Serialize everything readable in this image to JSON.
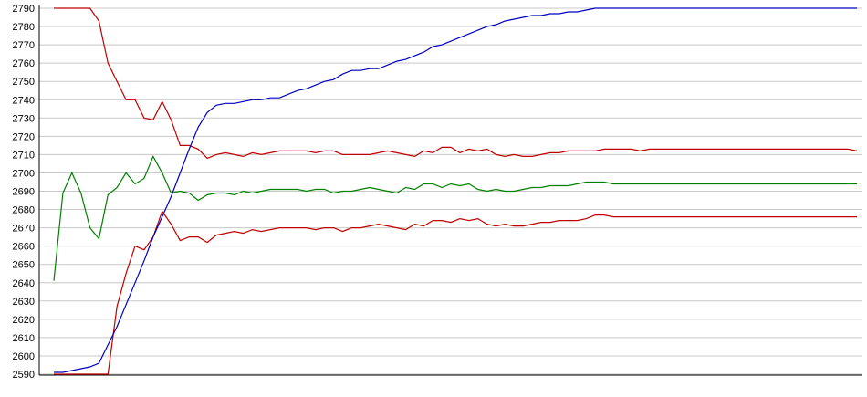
{
  "chart_data": {
    "type": "line",
    "title": "",
    "xlabel": "",
    "ylabel": "",
    "ylim": [
      2590,
      2790
    ],
    "yticks": [
      2590,
      2600,
      2610,
      2620,
      2630,
      2640,
      2650,
      2660,
      2670,
      2680,
      2690,
      2700,
      2710,
      2720,
      2730,
      2740,
      2750,
      2760,
      2770,
      2780,
      2790
    ],
    "grid": true,
    "legend": "none",
    "colors": {
      "upper": "#c00000",
      "middle": "#008000",
      "lower": "#c00000",
      "rising": "#0000c0",
      "grid": "#c8c8c8",
      "axis": "#000000"
    },
    "x": [
      1,
      2,
      3,
      4,
      5,
      6,
      7,
      8,
      9,
      10,
      11,
      12,
      13,
      14,
      15,
      16,
      17,
      18,
      19,
      20,
      21,
      22,
      23,
      24,
      25,
      26,
      27,
      28,
      29,
      30,
      31,
      32,
      33,
      34,
      35,
      36,
      37,
      38,
      39,
      40,
      41,
      42,
      43,
      44,
      45,
      46,
      47,
      48,
      49,
      50,
      51,
      52,
      53,
      54,
      55,
      56,
      57,
      58,
      59,
      60,
      61,
      62,
      63,
      64,
      65,
      66,
      67,
      68,
      69,
      70,
      71,
      72,
      73,
      74,
      75,
      76,
      77,
      78,
      79,
      80,
      81,
      82,
      83,
      84,
      85,
      86,
      87,
      88,
      89,
      90
    ],
    "series": [
      {
        "key": "upper",
        "values": [
          2790,
          2790,
          2790,
          2790,
          2790,
          2783,
          2760,
          2750,
          2740,
          2740,
          2730,
          2729,
          2739,
          2729,
          2715,
          2715,
          2713,
          2708,
          2710,
          2711,
          2710,
          2709,
          2711,
          2710,
          2711,
          2712,
          2712,
          2712,
          2712,
          2711,
          2712,
          2712,
          2710,
          2710,
          2710,
          2710,
          2711,
          2712,
          2711,
          2710,
          2709,
          2712,
          2711,
          2714,
          2714,
          2711,
          2713,
          2712,
          2713,
          2710,
          2709,
          2710,
          2709,
          2709,
          2710,
          2711,
          2711,
          2712,
          2712,
          2712,
          2712,
          2713,
          2713,
          2713,
          2713,
          2712,
          2713,
          2713,
          2713,
          2713,
          2713,
          2713,
          2713,
          2713,
          2713,
          2713,
          2713,
          2713,
          2713,
          2713,
          2713,
          2713,
          2713,
          2713,
          2713,
          2713,
          2713,
          2713,
          2713,
          2712
        ]
      },
      {
        "key": "middle",
        "values": [
          2641,
          2689,
          2700,
          2689,
          2670,
          2664,
          2688,
          2692,
          2700,
          2694,
          2697,
          2709,
          2700,
          2689,
          2690,
          2689,
          2685,
          2688,
          2689,
          2689,
          2688,
          2690,
          2689,
          2690,
          2691,
          2691,
          2691,
          2691,
          2690,
          2691,
          2691,
          2689,
          2690,
          2690,
          2691,
          2692,
          2691,
          2690,
          2689,
          2692,
          2691,
          2694,
          2694,
          2692,
          2694,
          2693,
          2694,
          2691,
          2690,
          2691,
          2690,
          2690,
          2691,
          2692,
          2692,
          2693,
          2693,
          2693,
          2694,
          2695,
          2695,
          2695,
          2694,
          2694,
          2694,
          2694,
          2694,
          2694,
          2694,
          2694,
          2694,
          2694,
          2694,
          2694,
          2694,
          2694,
          2694,
          2694,
          2694,
          2694,
          2694,
          2694,
          2694,
          2694,
          2694,
          2694,
          2694,
          2694,
          2694,
          2694
        ]
      },
      {
        "key": "lower",
        "values": [
          2590,
          2590,
          2590,
          2590,
          2590,
          2590,
          2590,
          2627,
          2645,
          2660,
          2658,
          2665,
          2679,
          2672,
          2663,
          2665,
          2665,
          2662,
          2666,
          2667,
          2668,
          2667,
          2669,
          2668,
          2669,
          2670,
          2670,
          2670,
          2670,
          2669,
          2670,
          2670,
          2668,
          2670,
          2670,
          2671,
          2672,
          2671,
          2670,
          2669,
          2672,
          2671,
          2674,
          2674,
          2673,
          2675,
          2674,
          2675,
          2672,
          2671,
          2672,
          2671,
          2671,
          2672,
          2673,
          2673,
          2674,
          2674,
          2674,
          2675,
          2677,
          2677,
          2676,
          2676,
          2676,
          2676,
          2676,
          2676,
          2676,
          2676,
          2676,
          2676,
          2676,
          2676,
          2676,
          2676,
          2676,
          2676,
          2676,
          2676,
          2676,
          2676,
          2676,
          2676,
          2676,
          2676,
          2676,
          2676,
          2676,
          2676
        ]
      },
      {
        "key": "rising",
        "values": [
          2591,
          2591,
          2592,
          2593,
          2594,
          2596,
          2606,
          2616,
          2628,
          2640,
          2652,
          2665,
          2676,
          2687,
          2700,
          2713,
          2725,
          2733,
          2737,
          2738,
          2738,
          2739,
          2740,
          2740,
          2741,
          2741,
          2743,
          2745,
          2746,
          2748,
          2750,
          2751,
          2754,
          2756,
          2756,
          2757,
          2757,
          2759,
          2761,
          2762,
          2764,
          2766,
          2769,
          2770,
          2772,
          2774,
          2776,
          2778,
          2780,
          2781,
          2783,
          2784,
          2785,
          2786,
          2786,
          2787,
          2787,
          2788,
          2788,
          2789,
          2790,
          2790,
          2790,
          2790,
          2790,
          2790,
          2790,
          2790,
          2790,
          2790,
          2790,
          2790,
          2790,
          2790,
          2790,
          2790,
          2790,
          2790,
          2790,
          2790,
          2790,
          2790,
          2790,
          2790,
          2790,
          2790,
          2790,
          2790,
          2790,
          2790
        ]
      }
    ]
  }
}
